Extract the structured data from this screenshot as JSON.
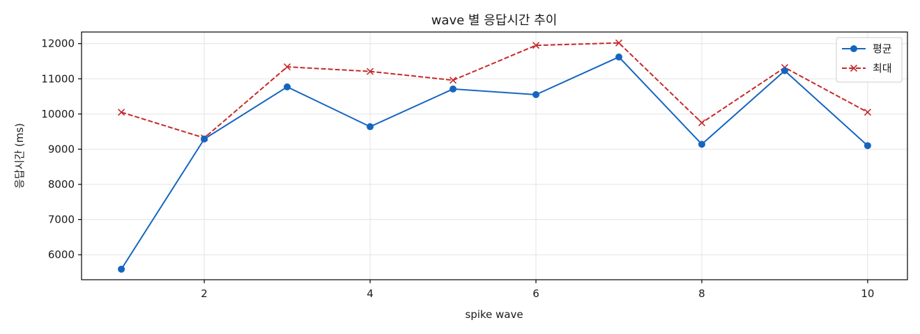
{
  "chart_data": {
    "type": "line",
    "title": "wave 별 응답시간 추이",
    "xlabel": "spike wave",
    "ylabel": "응답시간 (ms)",
    "x": [
      1,
      2,
      3,
      4,
      5,
      6,
      7,
      8,
      9,
      10
    ],
    "xlim": [
      0.52,
      10.48
    ],
    "ylim": [
      5290,
      12330
    ],
    "xticks": [
      2,
      4,
      6,
      8,
      10
    ],
    "yticks": [
      6000,
      7000,
      8000,
      9000,
      10000,
      11000,
      12000
    ],
    "grid": true,
    "legend_position": "top-right",
    "series": [
      {
        "name": "평균",
        "color": "#1565c0",
        "line_style": "solid",
        "marker": "circle",
        "values": [
          5590,
          9290,
          10770,
          9640,
          10710,
          10550,
          11620,
          9140,
          11230,
          9100
        ]
      },
      {
        "name": "최대",
        "color": "#c62828",
        "line_style": "dashed",
        "marker": "x",
        "values": [
          10050,
          9320,
          11340,
          11210,
          10960,
          11950,
          12020,
          9750,
          11320,
          10050
        ]
      }
    ]
  }
}
